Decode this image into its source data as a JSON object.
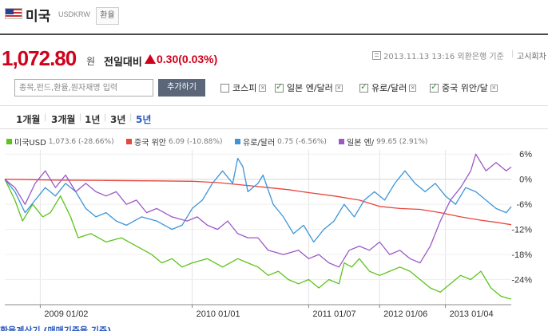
{
  "header": {
    "country": "미국",
    "code": "USDKRW",
    "fx_button": "환율"
  },
  "price": {
    "value": "1,072.80",
    "unit": "원",
    "change_label": "전일대비",
    "change": "0.30",
    "change_pct": "(0.03%)",
    "direction": "up",
    "timestamp": "2013.11.13 13:16 외환은행 기준",
    "notice_link": "고시회차"
  },
  "search": {
    "placeholder": "종목,펀드,환율,원자재명 입력",
    "add_button": "추가하기"
  },
  "compare": [
    {
      "label": "코스피",
      "checked": false
    },
    {
      "label": "일본 엔/달러",
      "checked": true
    },
    {
      "label": "유로/달러",
      "checked": true
    },
    {
      "label": "중국 위안/달",
      "checked": true
    }
  ],
  "periods": [
    {
      "label": "1개월",
      "active": false
    },
    {
      "label": "3개월",
      "active": false
    },
    {
      "label": "1년",
      "active": false
    },
    {
      "label": "3년",
      "active": false
    },
    {
      "label": "5년",
      "active": true
    }
  ],
  "colors": {
    "usd": "#5cc31a",
    "cny": "#e8453c",
    "eur": "#3a95d9",
    "jpy": "#9b59c6",
    "accent": "#d0021b",
    "tab_active": "#2c5bbd"
  },
  "footer_text": "환율계산기 (매매기준율 기준)",
  "chart_data": {
    "type": "line",
    "ylim": [
      -30,
      7
    ],
    "yticks": [
      6,
      0,
      -6,
      -12,
      -18,
      -24
    ],
    "ytick_labels": [
      "6%",
      "0%",
      "-6%",
      "-12%",
      "-18%",
      "-24%"
    ],
    "xticks": [
      "2009 01/02",
      "2010 01/01",
      "2011 01/07",
      "2012 01/06",
      "2013 01/04"
    ],
    "xtick_t": [
      0.07,
      0.37,
      0.6,
      0.74,
      0.87
    ],
    "legend": [
      {
        "name": "미국USD",
        "value": "1,073.6 (-28.66%)"
      },
      {
        "name": "중국 위안",
        "value": "6.09 (-10.88%)"
      },
      {
        "name": "유로/달러",
        "value": "0.75 (-6.56%)"
      },
      {
        "name": "일본 엔/",
        "value": "99.65 (2.91%)"
      }
    ],
    "series": [
      {
        "name": "미국USD",
        "color": "#5cc31a",
        "points": [
          [
            0,
            0
          ],
          [
            0.02,
            -5
          ],
          [
            0.035,
            -10
          ],
          [
            0.055,
            -6
          ],
          [
            0.075,
            -9
          ],
          [
            0.09,
            -8
          ],
          [
            0.11,
            -4
          ],
          [
            0.13,
            -9
          ],
          [
            0.145,
            -14
          ],
          [
            0.17,
            -13
          ],
          [
            0.2,
            -15
          ],
          [
            0.23,
            -14
          ],
          [
            0.26,
            -16
          ],
          [
            0.29,
            -18
          ],
          [
            0.31,
            -20
          ],
          [
            0.33,
            -19
          ],
          [
            0.35,
            -21
          ],
          [
            0.37,
            -20
          ],
          [
            0.4,
            -19
          ],
          [
            0.43,
            -21
          ],
          [
            0.46,
            -19
          ],
          [
            0.48,
            -20
          ],
          [
            0.5,
            -21
          ],
          [
            0.52,
            -23
          ],
          [
            0.54,
            -22
          ],
          [
            0.56,
            -24
          ],
          [
            0.58,
            -25
          ],
          [
            0.6,
            -24
          ],
          [
            0.62,
            -26
          ],
          [
            0.64,
            -24
          ],
          [
            0.66,
            -25
          ],
          [
            0.67,
            -20
          ],
          [
            0.685,
            -21
          ],
          [
            0.7,
            -19
          ],
          [
            0.72,
            -22
          ],
          [
            0.74,
            -23
          ],
          [
            0.76,
            -22
          ],
          [
            0.78,
            -21
          ],
          [
            0.8,
            -22
          ],
          [
            0.82,
            -24
          ],
          [
            0.84,
            -26
          ],
          [
            0.86,
            -27
          ],
          [
            0.88,
            -25
          ],
          [
            0.9,
            -23
          ],
          [
            0.92,
            -24
          ],
          [
            0.94,
            -22
          ],
          [
            0.96,
            -26
          ],
          [
            0.98,
            -28
          ],
          [
            1,
            -28.66
          ]
        ]
      },
      {
        "name": "중국 위안",
        "color": "#e8453c",
        "points": [
          [
            0,
            0
          ],
          [
            0.1,
            -0.2
          ],
          [
            0.2,
            -0.3
          ],
          [
            0.3,
            -0.4
          ],
          [
            0.37,
            -0.5
          ],
          [
            0.42,
            -0.8
          ],
          [
            0.48,
            -1.5
          ],
          [
            0.52,
            -2
          ],
          [
            0.56,
            -2.5
          ],
          [
            0.6,
            -3.2
          ],
          [
            0.65,
            -4
          ],
          [
            0.7,
            -5
          ],
          [
            0.74,
            -6.5
          ],
          [
            0.78,
            -7
          ],
          [
            0.82,
            -7.2
          ],
          [
            0.86,
            -8
          ],
          [
            0.9,
            -9
          ],
          [
            0.94,
            -9.8
          ],
          [
            0.97,
            -10.3
          ],
          [
            1,
            -10.88
          ]
        ]
      },
      {
        "name": "유로/달러",
        "color": "#3a95d9",
        "points": [
          [
            0,
            0
          ],
          [
            0.02,
            -3
          ],
          [
            0.04,
            -8
          ],
          [
            0.06,
            -5
          ],
          [
            0.08,
            -2
          ],
          [
            0.1,
            -4
          ],
          [
            0.12,
            -1
          ],
          [
            0.14,
            -3
          ],
          [
            0.16,
            -7
          ],
          [
            0.18,
            -9
          ],
          [
            0.2,
            -8
          ],
          [
            0.22,
            -10
          ],
          [
            0.24,
            -11
          ],
          [
            0.27,
            -9
          ],
          [
            0.3,
            -10
          ],
          [
            0.33,
            -12
          ],
          [
            0.35,
            -11
          ],
          [
            0.37,
            -7
          ],
          [
            0.39,
            -5
          ],
          [
            0.41,
            -1
          ],
          [
            0.43,
            2
          ],
          [
            0.45,
            -1
          ],
          [
            0.46,
            5
          ],
          [
            0.47,
            3
          ],
          [
            0.48,
            -3
          ],
          [
            0.5,
            -1
          ],
          [
            0.51,
            1
          ],
          [
            0.53,
            -6
          ],
          [
            0.55,
            -9
          ],
          [
            0.57,
            -13
          ],
          [
            0.59,
            -11
          ],
          [
            0.61,
            -15
          ],
          [
            0.63,
            -12
          ],
          [
            0.65,
            -10
          ],
          [
            0.67,
            -6
          ],
          [
            0.69,
            -9
          ],
          [
            0.71,
            -5
          ],
          [
            0.73,
            -3
          ],
          [
            0.75,
            -5
          ],
          [
            0.77,
            -1
          ],
          [
            0.79,
            2
          ],
          [
            0.81,
            -1
          ],
          [
            0.83,
            -3
          ],
          [
            0.85,
            -1
          ],
          [
            0.87,
            -4
          ],
          [
            0.89,
            -6
          ],
          [
            0.91,
            -2
          ],
          [
            0.93,
            -3
          ],
          [
            0.95,
            -5
          ],
          [
            0.97,
            -7
          ],
          [
            0.99,
            -8
          ],
          [
            1,
            -6.56
          ]
        ]
      },
      {
        "name": "일본 엔/",
        "color": "#9b59c6",
        "points": [
          [
            0,
            0
          ],
          [
            0.02,
            -2
          ],
          [
            0.04,
            -6
          ],
          [
            0.06,
            -1
          ],
          [
            0.08,
            2
          ],
          [
            0.1,
            -2
          ],
          [
            0.12,
            1
          ],
          [
            0.14,
            -3
          ],
          [
            0.16,
            -1
          ],
          [
            0.18,
            -3
          ],
          [
            0.2,
            -4
          ],
          [
            0.22,
            -3
          ],
          [
            0.24,
            -6
          ],
          [
            0.26,
            -5
          ],
          [
            0.28,
            -8
          ],
          [
            0.3,
            -7
          ],
          [
            0.33,
            -9
          ],
          [
            0.36,
            -10
          ],
          [
            0.38,
            -9
          ],
          [
            0.4,
            -11
          ],
          [
            0.42,
            -12
          ],
          [
            0.44,
            -10
          ],
          [
            0.46,
            -13
          ],
          [
            0.48,
            -14
          ],
          [
            0.5,
            -14
          ],
          [
            0.52,
            -17
          ],
          [
            0.55,
            -18
          ],
          [
            0.58,
            -17
          ],
          [
            0.6,
            -19
          ],
          [
            0.62,
            -18
          ],
          [
            0.64,
            -20
          ],
          [
            0.66,
            -21
          ],
          [
            0.68,
            -17
          ],
          [
            0.7,
            -16
          ],
          [
            0.72,
            -17
          ],
          [
            0.74,
            -15
          ],
          [
            0.76,
            -18
          ],
          [
            0.78,
            -17
          ],
          [
            0.8,
            -19
          ],
          [
            0.82,
            -20
          ],
          [
            0.84,
            -16
          ],
          [
            0.86,
            -10
          ],
          [
            0.88,
            -5
          ],
          [
            0.9,
            -2
          ],
          [
            0.92,
            2
          ],
          [
            0.93,
            6
          ],
          [
            0.95,
            2
          ],
          [
            0.97,
            4
          ],
          [
            0.99,
            2
          ],
          [
            1,
            2.91
          ]
        ]
      }
    ]
  }
}
